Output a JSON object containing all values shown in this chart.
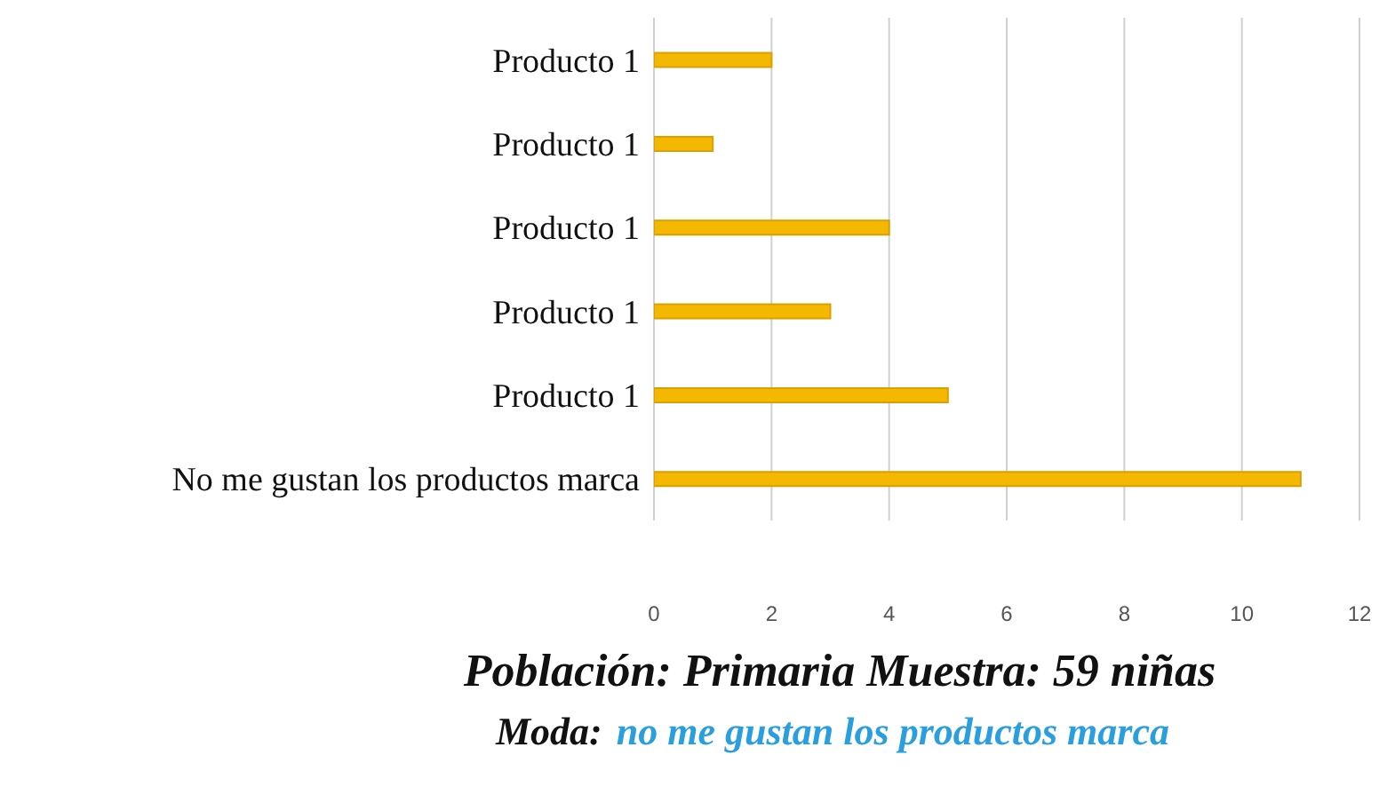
{
  "chart_data": {
    "type": "bar",
    "orientation": "horizontal",
    "categories": [
      "Producto 1",
      "Producto 1",
      "Producto 1",
      "Producto 1",
      "Producto 1",
      "No me gustan los productos marca"
    ],
    "values": [
      2,
      1,
      4,
      3,
      5,
      11
    ],
    "color": "#f5b800",
    "xlim": [
      0,
      12
    ],
    "xticks": [
      0,
      2,
      4,
      6,
      8,
      10,
      12
    ],
    "grid": "x",
    "annotations": [
      "Población: Primaria  Muestra: 59 niñas",
      "Moda:",
      "no me gustan los productos marca"
    ]
  }
}
